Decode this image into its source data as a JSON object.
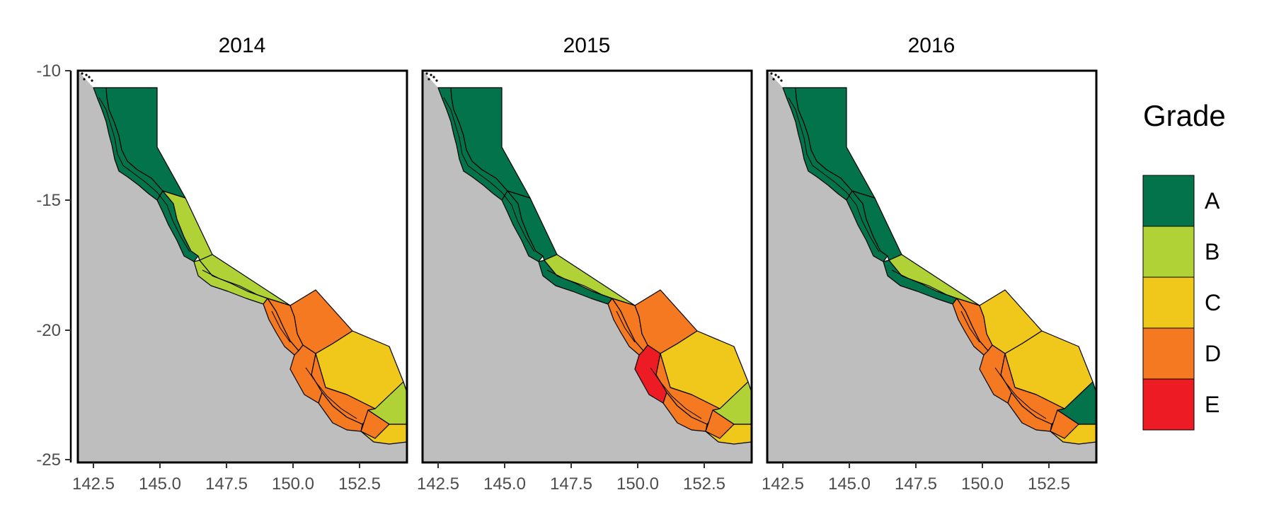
{
  "panels": [
    {
      "title": "2014",
      "grades": {
        "z1a": "A",
        "z1b": "A",
        "z2a": "A",
        "z2b": "B",
        "z3a": "B",
        "z3b": "B",
        "z4a": "D",
        "z4b": "D",
        "z4c": "D",
        "z5a": "C",
        "z5b": "D",
        "z5c": "D",
        "z6a": "B",
        "z6b": "D",
        "z6c": "D",
        "z7": "C"
      }
    },
    {
      "title": "2015",
      "grades": {
        "z1a": "A",
        "z1b": "A",
        "z2a": "A",
        "z2b": "A",
        "z3a": "A",
        "z3b": "B",
        "z4a": "D",
        "z4b": "D",
        "z4c": "D",
        "z5a": "C",
        "z5b": "D",
        "z5c": "E",
        "z6a": "B",
        "z6b": "D",
        "z6c": "D",
        "z7": "C"
      }
    },
    {
      "title": "2016",
      "grades": {
        "z1a": "A",
        "z1b": "A",
        "z2a": "A",
        "z2b": "A",
        "z3a": "A",
        "z3b": "B",
        "z4a": "D",
        "z4b": "D",
        "z4c": "C",
        "z5a": "C",
        "z5b": "D",
        "z5c": "D",
        "z6a": "A",
        "z6b": "D",
        "z6c": "D",
        "z7": "C"
      }
    }
  ],
  "axes": {
    "x_ticks": [
      "142.5",
      "145.0",
      "147.5",
      "150.0",
      "152.5"
    ],
    "y_ticks": [
      "-10",
      "-15",
      "-20",
      "-25"
    ]
  },
  "legend": {
    "title": "Grade",
    "items": [
      {
        "grade": "A",
        "color": "#03734c"
      },
      {
        "grade": "B",
        "color": "#b0d236"
      },
      {
        "grade": "C",
        "color": "#f0c71b"
      },
      {
        "grade": "D",
        "color": "#f47920"
      },
      {
        "grade": "E",
        "color": "#ed1c24"
      }
    ]
  },
  "colors": {
    "land": "#bebebe",
    "frame": "#000000"
  }
}
